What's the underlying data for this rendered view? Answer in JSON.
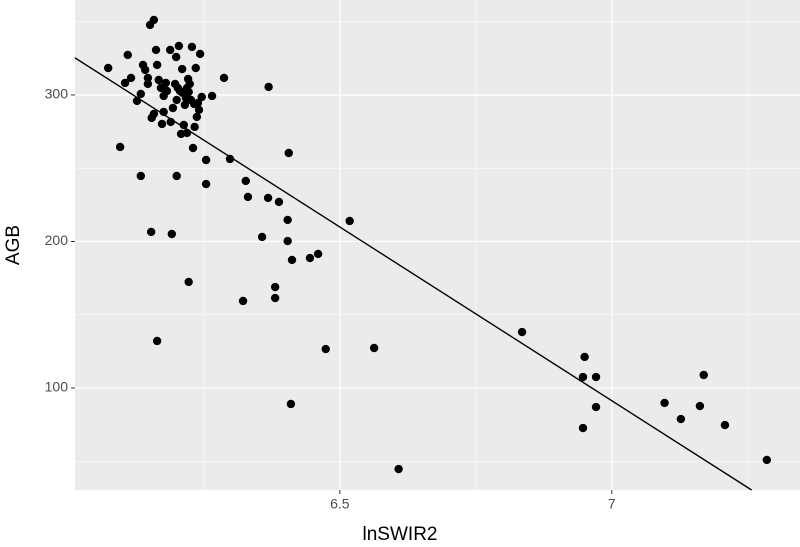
{
  "chart_data": {
    "type": "scatter",
    "x_label": "lnSWIR2",
    "y_label": "AGB",
    "xlim": [
      6.013,
      7.346
    ],
    "ylim": [
      30.4,
      364.8
    ],
    "xticks": [
      6.5,
      7.0
    ],
    "yticks": [
      100,
      200,
      300
    ],
    "xminor": [
      6.25,
      6.75,
      7.25
    ],
    "yminor": [
      50,
      150,
      250,
      350
    ],
    "grid": true,
    "color": "#000000",
    "trend_line": {
      "x": [
        6.013,
        7.257
      ],
      "y": [
        325.3,
        30.4
      ],
      "color": "#000000"
    },
    "x": [
      6.074,
      6.11,
      6.105,
      6.116,
      6.127,
      6.134,
      6.138,
      6.142,
      6.147,
      6.147,
      6.151,
      6.158,
      6.154,
      6.158,
      6.162,
      6.164,
      6.167,
      6.171,
      6.173,
      6.176,
      6.176,
      6.18,
      6.182,
      6.188,
      6.189,
      6.193,
      6.197,
      6.199,
      6.2,
      6.202,
      6.204,
      6.206,
      6.208,
      6.21,
      6.211,
      6.213,
      6.215,
      6.217,
      6.219,
      6.219,
      6.221,
      6.222,
      6.224,
      6.226,
      6.228,
      6.23,
      6.232,
      6.233,
      6.235,
      6.237,
      6.239,
      6.241,
      6.243,
      6.246,
      6.265,
      6.287,
      6.096,
      6.134,
      6.153,
      6.191,
      6.2,
      6.164,
      6.222,
      6.254,
      6.254,
      6.298,
      6.322,
      6.327,
      6.331,
      6.357,
      6.368,
      6.369,
      6.388,
      6.381,
      6.381,
      6.404,
      6.406,
      6.404,
      6.412,
      6.41,
      6.445,
      6.46,
      6.474,
      6.518,
      6.563,
      6.608,
      6.835,
      6.95,
      6.947,
      6.971,
      6.947,
      6.971,
      7.097,
      7.127,
      7.162,
      7.169,
      7.208,
      7.285
    ],
    "values": [
      318.4,
      327.3,
      308.2,
      311.6,
      295.9,
      300.7,
      320.5,
      317.1,
      311.6,
      307.5,
      347.8,
      351.2,
      284.3,
      287.0,
      330.7,
      320.5,
      310.2,
      304.8,
      280.2,
      299.3,
      288.4,
      308.2,
      302.7,
      330.7,
      281.6,
      291.1,
      307.5,
      325.9,
      296.6,
      304.8,
      333.4,
      302.7,
      273.4,
      317.7,
      301.4,
      279.5,
      293.2,
      298.0,
      274.1,
      304.8,
      310.9,
      302.0,
      307.5,
      296.6,
      332.8,
      263.8,
      293.9,
      278.2,
      318.4,
      285.0,
      294.5,
      289.8,
      328.0,
      298.6,
      299.3,
      311.6,
      264.5,
      244.7,
      206.5,
      205.1,
      244.7,
      132.1,
      172.4,
      255.6,
      239.2,
      256.3,
      159.4,
      241.3,
      230.4,
      203.1,
      229.7,
      305.5,
      227.0,
      168.9,
      161.4,
      214.7,
      260.4,
      200.3,
      187.4,
      89.1,
      188.7,
      191.5,
      126.6,
      214.0,
      127.3,
      44.7,
      138.2,
      121.2,
      107.5,
      107.5,
      72.7,
      87.0,
      89.8,
      78.8,
      87.7,
      108.9,
      74.7,
      50.9
    ]
  }
}
